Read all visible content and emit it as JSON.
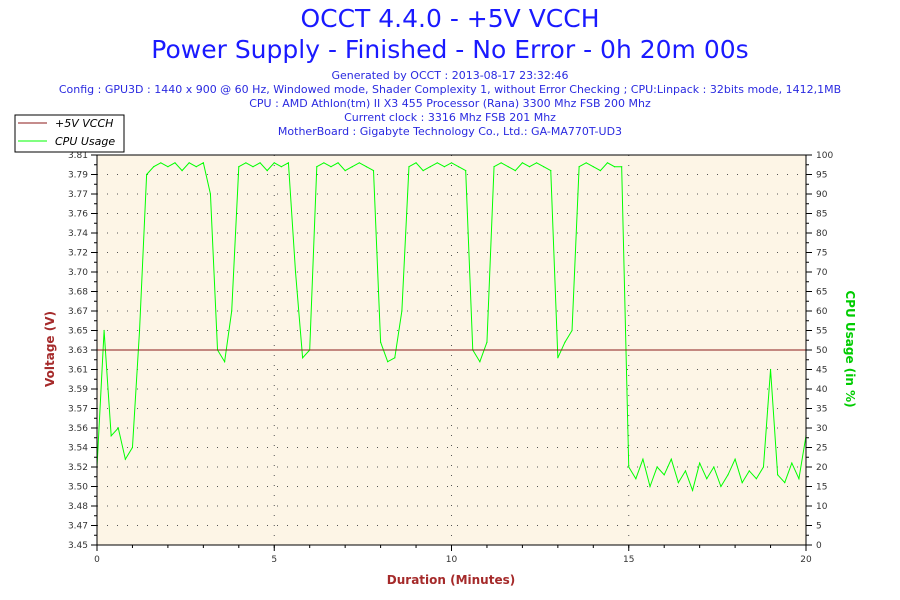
{
  "header": {
    "title": "OCCT 4.4.0 - +5V VCCH",
    "subtitle": "Power Supply - Finished - No Error - 0h 20m 00s",
    "info": [
      "Generated by OCCT : 2013-08-17 23:32:46",
      "Config : GPU3D : 1440 x 900 @ 60 Hz, Windowed mode, Shader Complexity 1, without Error Checking ; CPU:Linpack : 32bits mode, 1412,1MB",
      "CPU : AMD Athlon(tm) II X3 455 Processor (Rana) 3300 Mhz FSB 200 Mhz",
      "Current clock : 3316 Mhz FSB 201 Mhz",
      "MotherBoard : Gigabyte Technology Co., Ltd.: GA-MA770T-UD3"
    ]
  },
  "chart_data": {
    "type": "line",
    "xlabel": "Duration (Minutes)",
    "ylabel": "Voltage (V)",
    "y2label": "CPU Usage (in %)",
    "xlim": [
      0,
      20
    ],
    "xticks": [
      "0",
      "5",
      "10",
      "15",
      "20"
    ],
    "ylim": [
      3.45,
      3.81
    ],
    "yticks": [
      "3.45",
      "3.47",
      "3.48",
      "3.50",
      "3.52",
      "3.54",
      "3.56",
      "3.57",
      "3.59",
      "3.61",
      "3.63",
      "3.65",
      "3.67",
      "3.68",
      "3.70",
      "3.72",
      "3.74",
      "3.76",
      "3.77",
      "3.79",
      "3.81"
    ],
    "y2lim": [
      0,
      100
    ],
    "y2ticks": [
      "0",
      "5",
      "10",
      "15",
      "20",
      "25",
      "30",
      "35",
      "40",
      "45",
      "50",
      "55",
      "60",
      "65",
      "70",
      "75",
      "80",
      "85",
      "90",
      "95",
      "100"
    ],
    "grid": true,
    "legend_position": "top-left",
    "colors": {
      "voltage": "#8b1a1a",
      "cpu": "#00ff00",
      "title": "#1a1aff",
      "plot_bg": "#fdf5e6",
      "ylabel": "#a52a2a",
      "y2label": "#00cc00"
    },
    "series": [
      {
        "name": "+5V VCCH",
        "axis": "left",
        "x": [
          0,
          20
        ],
        "values": [
          3.63,
          3.63
        ]
      },
      {
        "name": "CPU Usage",
        "axis": "right",
        "x_step": 0.2,
        "values": [
          20,
          55,
          28,
          30,
          22,
          25,
          55,
          95,
          97,
          98,
          97,
          98,
          96,
          98,
          97,
          98,
          90,
          50,
          47,
          60,
          97,
          98,
          97,
          98,
          96,
          98,
          97,
          98,
          70,
          48,
          50,
          97,
          98,
          97,
          98,
          96,
          97,
          98,
          97,
          96,
          52,
          47,
          48,
          60,
          97,
          98,
          96,
          97,
          98,
          97,
          98,
          97,
          96,
          50,
          47,
          52,
          97,
          98,
          97,
          96,
          98,
          97,
          98,
          97,
          96,
          48,
          52,
          55,
          97,
          98,
          97,
          96,
          98,
          97,
          97,
          20,
          17,
          22,
          15,
          20,
          18,
          22,
          16,
          19,
          14,
          21,
          17,
          20,
          15,
          18,
          22,
          16,
          19,
          17,
          20,
          45,
          18,
          16,
          21,
          17,
          28
        ]
      }
    ]
  }
}
